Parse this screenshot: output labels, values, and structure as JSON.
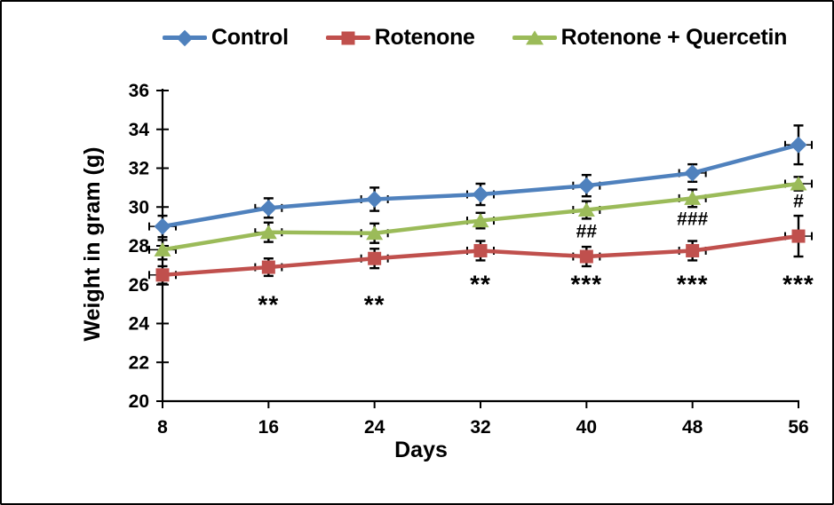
{
  "frame": {
    "background": "#ffffff",
    "border_color": "#000000"
  },
  "chart_data": {
    "type": "line",
    "title": "",
    "xlabel": "Days",
    "ylabel": "Weight in gram (g)",
    "x": [
      8,
      16,
      24,
      32,
      40,
      48,
      56
    ],
    "xtick_labels": [
      "8",
      "16",
      "24",
      "32",
      "40",
      "48",
      "56"
    ],
    "yticks": [
      20,
      22,
      24,
      26,
      28,
      30,
      32,
      34,
      36
    ],
    "ylim": [
      20,
      36
    ],
    "grid": "off",
    "legend_position": "top",
    "axis_color": "#000000",
    "error_bar_color": "#000000",
    "series": [
      {
        "name": "Control",
        "color": "#4F81BD",
        "marker": "diamond",
        "values": [
          29.0,
          29.95,
          30.4,
          30.65,
          31.1,
          31.75,
          33.2
        ],
        "errors": [
          0.55,
          0.5,
          0.6,
          0.55,
          0.55,
          0.45,
          1.0
        ]
      },
      {
        "name": "Rotenone",
        "color": "#C0504D",
        "marker": "square",
        "values": [
          26.5,
          26.9,
          27.35,
          27.75,
          27.45,
          27.75,
          28.5
        ],
        "errors": [
          0.45,
          0.45,
          0.5,
          0.5,
          0.5,
          0.5,
          1.05
        ]
      },
      {
        "name": "Rotenone + Quercetin",
        "color": "#9BBB59",
        "marker": "triangle",
        "values": [
          27.8,
          28.7,
          28.65,
          29.3,
          29.85,
          30.45,
          31.2
        ],
        "errors": [
          0.5,
          0.5,
          0.5,
          0.4,
          0.45,
          0.45,
          0.35
        ]
      }
    ],
    "annotations": [
      {
        "text": "**",
        "x": 16,
        "y": 25.2,
        "kind": "star"
      },
      {
        "text": "**",
        "x": 24,
        "y": 25.2,
        "kind": "star"
      },
      {
        "text": "**",
        "x": 32,
        "y": 26.25,
        "kind": "star"
      },
      {
        "text": "***",
        "x": 40,
        "y": 26.25,
        "kind": "star"
      },
      {
        "text": "***",
        "x": 48,
        "y": 26.25,
        "kind": "star"
      },
      {
        "text": "***",
        "x": 56,
        "y": 26.25,
        "kind": "star"
      },
      {
        "text": "##",
        "x": 40,
        "y": 28.75,
        "kind": "hash"
      },
      {
        "text": "###",
        "x": 48,
        "y": 29.4,
        "kind": "hash"
      },
      {
        "text": "#",
        "x": 56,
        "y": 30.3,
        "kind": "hash"
      }
    ]
  }
}
